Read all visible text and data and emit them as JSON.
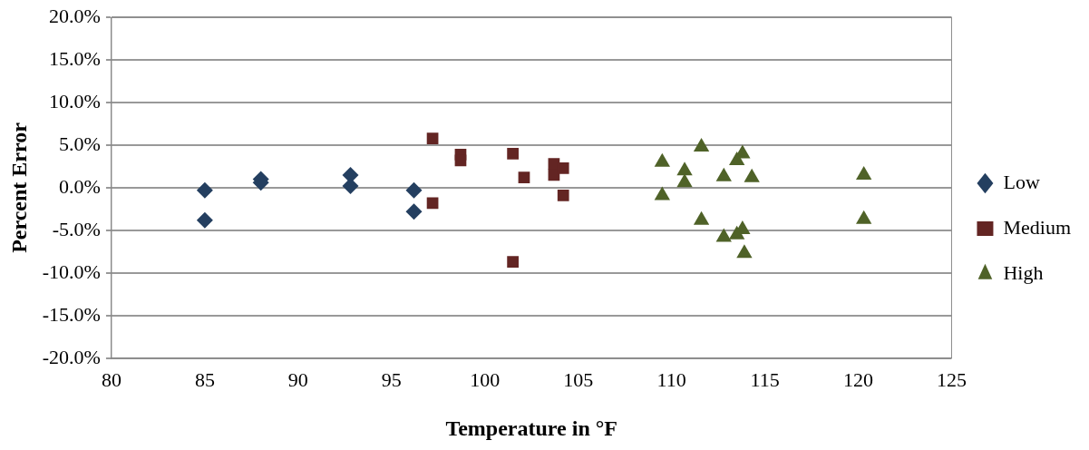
{
  "chart_data": {
    "type": "scatter",
    "xlabel": "Temperature in °F",
    "ylabel": "Percent Error",
    "xlim": [
      80,
      125
    ],
    "xticks": [
      80,
      85,
      90,
      95,
      100,
      105,
      110,
      115,
      120,
      125
    ],
    "ylim": [
      -20,
      20
    ],
    "yticks": [
      {
        "value": -20,
        "label": "-20.0%"
      },
      {
        "value": -15,
        "label": "-15.0%"
      },
      {
        "value": -10,
        "label": "-10.0%"
      },
      {
        "value": -5,
        "label": "-5.0%"
      },
      {
        "value": 0,
        "label": "0.0%"
      },
      {
        "value": 5,
        "label": "5.0%"
      },
      {
        "value": 10,
        "label": "10.0%"
      },
      {
        "value": 15,
        "label": "15.0%"
      },
      {
        "value": 20,
        "label": "20.0%"
      }
    ],
    "grid": "y",
    "legend": "right",
    "series": [
      {
        "name": "Low",
        "color": "#243f60",
        "marker": "diamond",
        "x": [
          85.0,
          85.0,
          88.0,
          88.0,
          92.8,
          92.8,
          96.2,
          96.2
        ],
        "values": [
          -0.3,
          -3.8,
          1.0,
          0.6,
          1.5,
          0.2,
          -0.3,
          -2.8
        ]
      },
      {
        "name": "Medium",
        "color": "#632523",
        "marker": "square",
        "x": [
          97.2,
          97.2,
          98.7,
          98.7,
          101.5,
          101.5,
          102.1,
          103.7,
          103.7,
          104.2,
          104.2
        ],
        "values": [
          5.8,
          -1.8,
          3.9,
          3.2,
          4.0,
          -8.7,
          1.2,
          2.8,
          1.5,
          2.3,
          -0.9
        ]
      },
      {
        "name": "High",
        "color": "#4f6228",
        "marker": "triangle",
        "x": [
          109.5,
          109.5,
          110.7,
          110.7,
          111.6,
          111.6,
          112.8,
          112.8,
          113.5,
          113.8,
          113.8,
          113.5,
          113.9,
          114.3,
          120.3,
          120.3
        ],
        "values": [
          3.0,
          -0.9,
          2.0,
          0.6,
          4.8,
          -3.8,
          1.3,
          -5.8,
          3.2,
          4.0,
          -4.9,
          -5.5,
          -7.7,
          1.2,
          1.5,
          -3.7
        ]
      }
    ]
  }
}
